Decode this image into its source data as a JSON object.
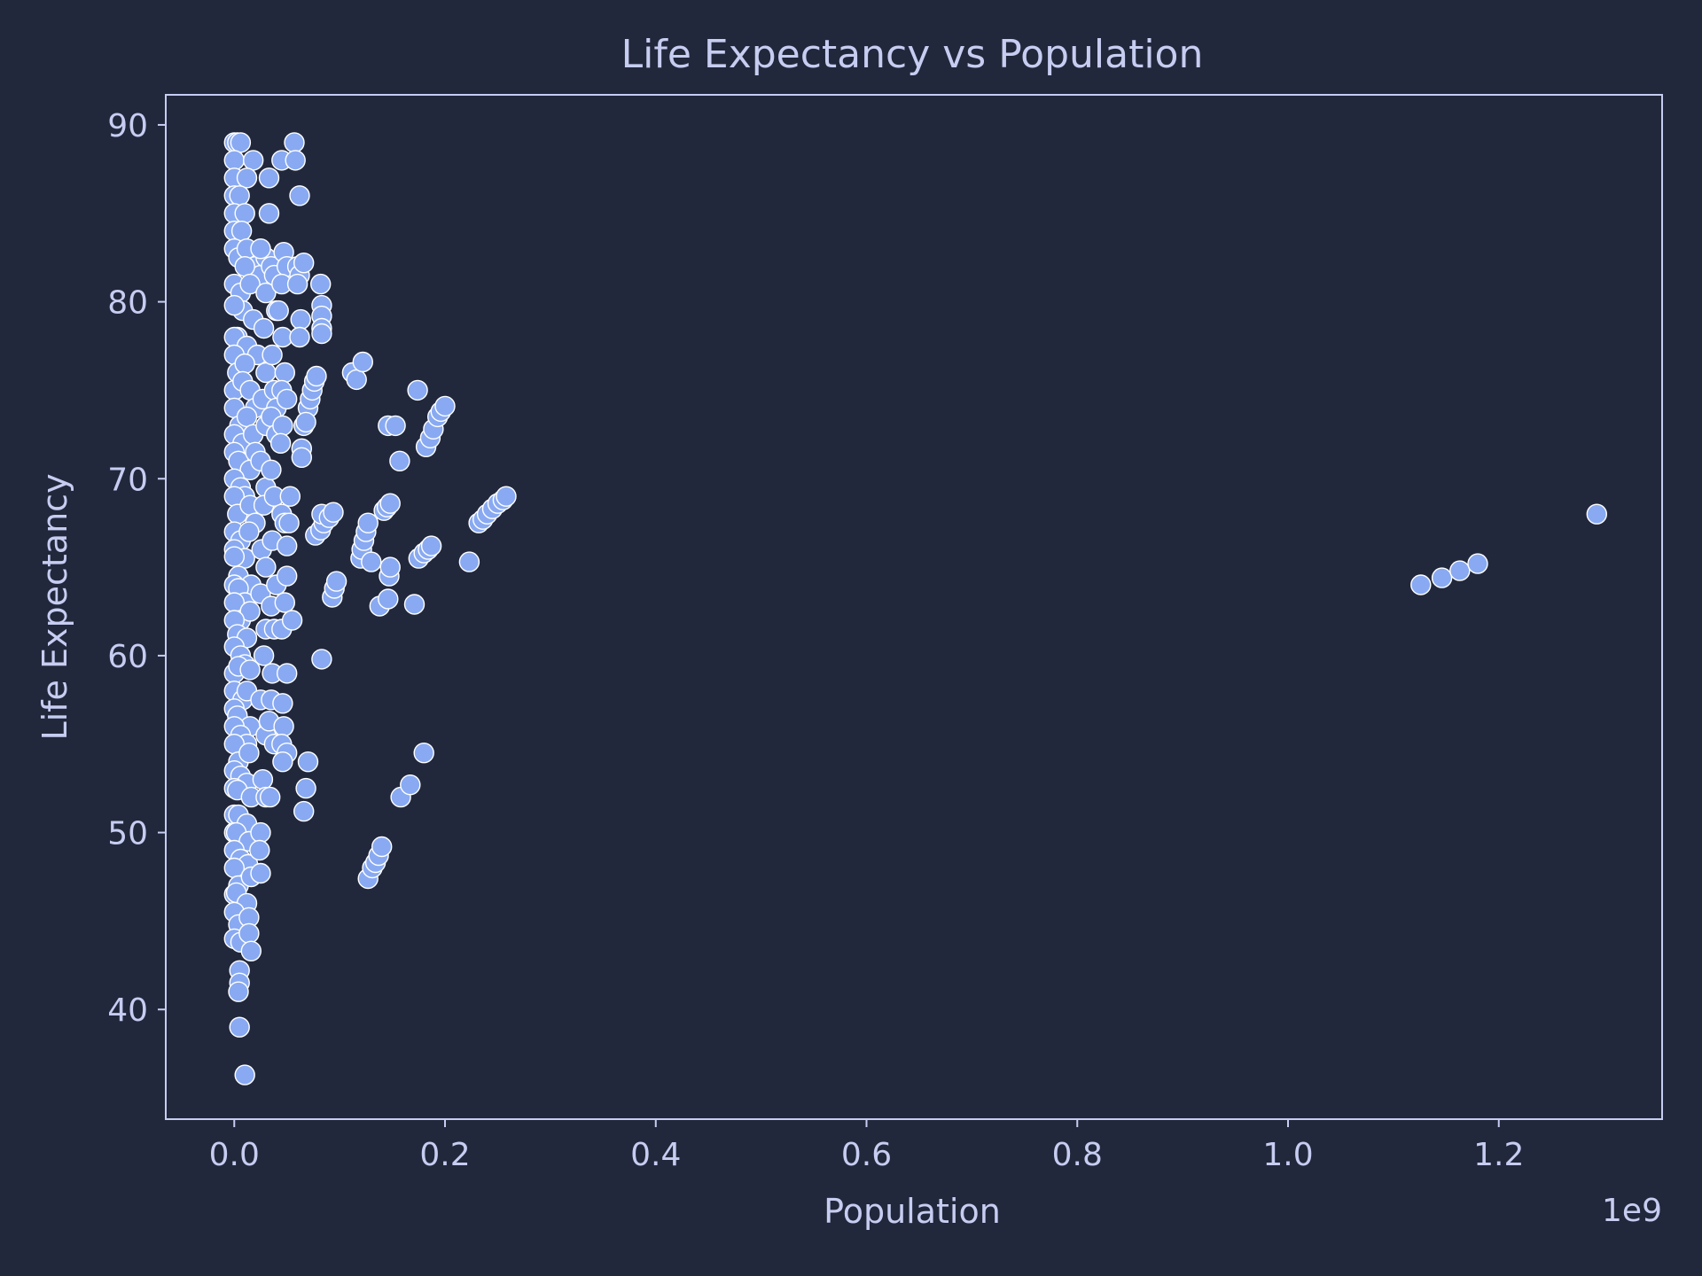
{
  "chart_data": {
    "type": "scatter",
    "title": "Life Expectancy vs Population",
    "xlabel": "Population",
    "ylabel": "Life Expectancy",
    "x_scale_label": "1e9",
    "xlim": [
      -0.065,
      1.355
    ],
    "ylim": [
      33.8,
      91.7
    ],
    "x_ticks": [
      0.0,
      0.2,
      0.4,
      0.6,
      0.8,
      1.0,
      1.2
    ],
    "x_tick_labels": [
      "0.0",
      "0.2",
      "0.4",
      "0.6",
      "0.8",
      "1.0",
      "1.2"
    ],
    "y_ticks": [
      40,
      50,
      60,
      70,
      80,
      90
    ],
    "y_tick_labels": [
      "40",
      "50",
      "60",
      "70",
      "80",
      "90"
    ],
    "grid": false,
    "legend": "none",
    "colors": {
      "background": "#22283b",
      "point": "#89aaf2",
      "point_edge": "#ffffff",
      "text": "#c6cdf1"
    },
    "series": [
      {
        "points": [
          [
            0.0,
            89.0
          ],
          [
            0.003,
            89.0
          ],
          [
            0.006,
            89.0
          ],
          [
            0.0,
            88.0
          ],
          [
            0.018,
            88.0
          ],
          [
            0.0,
            87.0
          ],
          [
            0.012,
            87.0
          ],
          [
            0.0,
            86.0
          ],
          [
            0.005,
            86.0
          ],
          [
            0.0,
            85.0
          ],
          [
            0.01,
            85.0
          ],
          [
            0.0,
            84.0
          ],
          [
            0.007,
            84.0
          ],
          [
            0.0,
            83.0
          ],
          [
            0.004,
            82.5
          ],
          [
            0.012,
            83.0
          ],
          [
            0.02,
            82.0
          ],
          [
            0.025,
            81.5
          ],
          [
            0.03,
            82.5
          ],
          [
            0.0,
            81.0
          ],
          [
            0.006,
            80.5
          ],
          [
            0.01,
            82.0
          ],
          [
            0.015,
            81.0
          ],
          [
            0.008,
            79.5
          ],
          [
            0.0,
            79.8
          ],
          [
            0.003,
            78.0
          ],
          [
            0.0,
            78.0
          ],
          [
            0.012,
            77.5
          ],
          [
            0.018,
            79.0
          ],
          [
            0.022,
            77.0
          ],
          [
            0.0,
            77.0
          ],
          [
            0.003,
            76.0
          ],
          [
            0.01,
            76.5
          ],
          [
            0.0,
            75.0
          ],
          [
            0.008,
            75.5
          ],
          [
            0.015,
            75.0
          ],
          [
            0.02,
            74.0
          ],
          [
            0.0,
            74.0
          ],
          [
            0.005,
            73.0
          ],
          [
            0.012,
            73.5
          ],
          [
            0.0,
            72.5
          ],
          [
            0.008,
            72.0
          ],
          [
            0.018,
            72.5
          ],
          [
            0.0,
            71.5
          ],
          [
            0.004,
            71.0
          ],
          [
            0.015,
            70.5
          ],
          [
            0.02,
            71.5
          ],
          [
            0.0,
            70.0
          ],
          [
            0.006,
            69.5
          ],
          [
            0.01,
            69.0
          ],
          [
            0.0,
            69.0
          ],
          [
            0.003,
            68.0
          ],
          [
            0.015,
            68.5
          ],
          [
            0.02,
            67.5
          ],
          [
            0.0,
            67.0
          ],
          [
            0.006,
            66.5
          ],
          [
            0.014,
            67.0
          ],
          [
            0.0,
            66.0
          ],
          [
            0.01,
            65.5
          ],
          [
            0.0,
            65.6
          ],
          [
            0.004,
            64.5
          ],
          [
            0.016,
            64.0
          ],
          [
            0.0,
            64.0
          ],
          [
            0.004,
            63.8
          ],
          [
            0.01,
            63.0
          ],
          [
            0.0,
            63.0
          ],
          [
            0.006,
            62.0
          ],
          [
            0.015,
            62.5
          ],
          [
            0.0,
            62.0
          ],
          [
            0.003,
            61.2
          ],
          [
            0.012,
            61.0
          ],
          [
            0.0,
            60.5
          ],
          [
            0.006,
            60.0
          ],
          [
            0.01,
            59.5
          ],
          [
            0.0,
            59.0
          ],
          [
            0.004,
            59.4
          ],
          [
            0.015,
            59.2
          ],
          [
            0.0,
            58.0
          ],
          [
            0.008,
            57.5
          ],
          [
            0.012,
            58.0
          ],
          [
            0.0,
            57.0
          ],
          [
            0.003,
            56.6
          ],
          [
            0.015,
            56.0
          ],
          [
            0.0,
            56.0
          ],
          [
            0.006,
            55.5
          ],
          [
            0.012,
            55.0
          ],
          [
            0.0,
            55.0
          ],
          [
            0.004,
            54.0
          ],
          [
            0.014,
            54.5
          ],
          [
            0.0,
            53.5
          ],
          [
            0.006,
            53.2
          ],
          [
            0.012,
            52.8
          ],
          [
            0.0,
            52.5
          ],
          [
            0.003,
            52.4
          ],
          [
            0.016,
            52.0
          ],
          [
            0.0,
            51.0
          ],
          [
            0.004,
            51.0
          ],
          [
            0.012,
            50.5
          ],
          [
            0.0,
            50.0
          ],
          [
            0.002,
            50.0
          ],
          [
            0.014,
            49.5
          ],
          [
            0.0,
            49.0
          ],
          [
            0.006,
            48.5
          ],
          [
            0.013,
            48.2
          ],
          [
            0.0,
            48.0
          ],
          [
            0.004,
            47.0
          ],
          [
            0.016,
            47.5
          ],
          [
            0.0,
            46.5
          ],
          [
            0.002,
            46.6
          ],
          [
            0.012,
            46.0
          ],
          [
            0.0,
            45.5
          ],
          [
            0.004,
            44.8
          ],
          [
            0.014,
            45.2
          ],
          [
            0.0,
            44.0
          ],
          [
            0.006,
            43.8
          ],
          [
            0.014,
            44.3
          ],
          [
            0.016,
            43.3
          ],
          [
            0.005,
            42.2
          ],
          [
            0.005,
            41.5
          ],
          [
            0.004,
            41.0
          ],
          [
            0.005,
            39.0
          ],
          [
            0.01,
            36.3
          ],
          [
            0.025,
            83.0
          ],
          [
            0.03,
            80.5
          ],
          [
            0.028,
            78.5
          ],
          [
            0.03,
            76.0
          ],
          [
            0.027,
            74.5
          ],
          [
            0.03,
            73.0
          ],
          [
            0.025,
            71.0
          ],
          [
            0.03,
            69.5
          ],
          [
            0.028,
            68.5
          ],
          [
            0.026,
            66.0
          ],
          [
            0.03,
            65.0
          ],
          [
            0.025,
            63.5
          ],
          [
            0.03,
            61.5
          ],
          [
            0.028,
            60.0
          ],
          [
            0.025,
            57.5
          ],
          [
            0.03,
            55.5
          ],
          [
            0.027,
            53.0
          ],
          [
            0.03,
            52.0
          ],
          [
            0.025,
            50.0
          ],
          [
            0.024,
            49.0
          ],
          [
            0.025,
            47.7
          ],
          [
            0.033,
            87.0
          ],
          [
            0.033,
            85.0
          ],
          [
            0.035,
            82.0
          ],
          [
            0.038,
            81.5
          ],
          [
            0.04,
            79.5
          ],
          [
            0.036,
            77.0
          ],
          [
            0.038,
            75.0
          ],
          [
            0.04,
            74.0
          ],
          [
            0.035,
            73.5
          ],
          [
            0.04,
            72.5
          ],
          [
            0.035,
            70.5
          ],
          [
            0.038,
            69.0
          ],
          [
            0.036,
            66.5
          ],
          [
            0.04,
            64.0
          ],
          [
            0.035,
            62.8
          ],
          [
            0.038,
            61.5
          ],
          [
            0.036,
            59.0
          ],
          [
            0.035,
            57.5
          ],
          [
            0.033,
            56.3
          ],
          [
            0.038,
            55.0
          ],
          [
            0.034,
            52.0
          ],
          [
            0.045,
            88.0
          ],
          [
            0.047,
            82.8
          ],
          [
            0.05,
            82.0
          ],
          [
            0.045,
            81.0
          ],
          [
            0.042,
            79.5
          ],
          [
            0.046,
            78.0
          ],
          [
            0.048,
            76.0
          ],
          [
            0.045,
            75.0
          ],
          [
            0.05,
            74.5
          ],
          [
            0.046,
            73.0
          ],
          [
            0.044,
            72.0
          ],
          [
            0.045,
            68.0
          ],
          [
            0.048,
            67.5
          ],
          [
            0.05,
            66.2
          ],
          [
            0.05,
            64.5
          ],
          [
            0.048,
            63.0
          ],
          [
            0.045,
            61.5
          ],
          [
            0.05,
            59.0
          ],
          [
            0.046,
            57.3
          ],
          [
            0.047,
            56.0
          ],
          [
            0.045,
            55.0
          ],
          [
            0.05,
            54.5
          ],
          [
            0.046,
            54.0
          ],
          [
            0.057,
            89.0
          ],
          [
            0.058,
            88.0
          ],
          [
            0.062,
            86.0
          ],
          [
            0.06,
            82.0
          ],
          [
            0.062,
            81.5
          ],
          [
            0.066,
            82.2
          ],
          [
            0.06,
            81.0
          ],
          [
            0.063,
            79.0
          ],
          [
            0.062,
            78.0
          ],
          [
            0.07,
            74.0
          ],
          [
            0.066,
            73.0
          ],
          [
            0.064,
            71.7
          ],
          [
            0.064,
            71.2
          ],
          [
            0.053,
            69.0
          ],
          [
            0.052,
            67.5
          ],
          [
            0.055,
            62.0
          ],
          [
            0.07,
            54.0
          ],
          [
            0.068,
            52.5
          ],
          [
            0.066,
            51.2
          ],
          [
            0.072,
            74.5
          ],
          [
            0.074,
            75.0
          ],
          [
            0.076,
            75.5
          ],
          [
            0.078,
            75.8
          ],
          [
            0.068,
            73.2
          ],
          [
            0.082,
            81.0
          ],
          [
            0.083,
            79.8
          ],
          [
            0.083,
            79.2
          ],
          [
            0.083,
            78.5
          ],
          [
            0.083,
            78.2
          ],
          [
            0.077,
            66.8
          ],
          [
            0.082,
            67.1
          ],
          [
            0.085,
            67.5
          ],
          [
            0.083,
            68.0
          ],
          [
            0.09,
            67.8
          ],
          [
            0.094,
            68.1
          ],
          [
            0.093,
            63.3
          ],
          [
            0.095,
            63.8
          ],
          [
            0.097,
            64.2
          ],
          [
            0.083,
            59.8
          ],
          [
            0.112,
            76.0
          ],
          [
            0.116,
            75.6
          ],
          [
            0.122,
            76.6
          ],
          [
            0.12,
            65.5
          ],
          [
            0.121,
            66.0
          ],
          [
            0.123,
            66.5
          ],
          [
            0.125,
            67.0
          ],
          [
            0.127,
            67.5
          ],
          [
            0.13,
            65.3
          ],
          [
            0.138,
            62.8
          ],
          [
            0.146,
            63.2
          ],
          [
            0.147,
            64.5
          ],
          [
            0.148,
            65.0
          ],
          [
            0.142,
            68.2
          ],
          [
            0.145,
            68.4
          ],
          [
            0.148,
            68.6
          ],
          [
            0.146,
            73.0
          ],
          [
            0.153,
            73.0
          ],
          [
            0.157,
            71.0
          ],
          [
            0.127,
            47.4
          ],
          [
            0.131,
            48.0
          ],
          [
            0.134,
            48.3
          ],
          [
            0.137,
            48.7
          ],
          [
            0.14,
            49.2
          ],
          [
            0.158,
            52.0
          ],
          [
            0.167,
            52.7
          ],
          [
            0.171,
            62.9
          ],
          [
            0.175,
            65.5
          ],
          [
            0.18,
            65.8
          ],
          [
            0.184,
            66.0
          ],
          [
            0.187,
            66.2
          ],
          [
            0.174,
            75.0
          ],
          [
            0.182,
            71.8
          ],
          [
            0.186,
            72.3
          ],
          [
            0.189,
            72.8
          ],
          [
            0.193,
            73.5
          ],
          [
            0.196,
            73.8
          ],
          [
            0.2,
            74.1
          ],
          [
            0.18,
            54.5
          ],
          [
            0.223,
            65.3
          ],
          [
            0.232,
            67.5
          ],
          [
            0.236,
            67.7
          ],
          [
            0.24,
            68.0
          ],
          [
            0.245,
            68.3
          ],
          [
            0.25,
            68.6
          ],
          [
            0.255,
            68.8
          ],
          [
            0.258,
            69.0
          ],
          [
            1.126,
            64.0
          ],
          [
            1.146,
            64.4
          ],
          [
            1.163,
            64.8
          ],
          [
            1.18,
            65.2
          ],
          [
            1.293,
            68.0
          ]
        ]
      }
    ]
  }
}
